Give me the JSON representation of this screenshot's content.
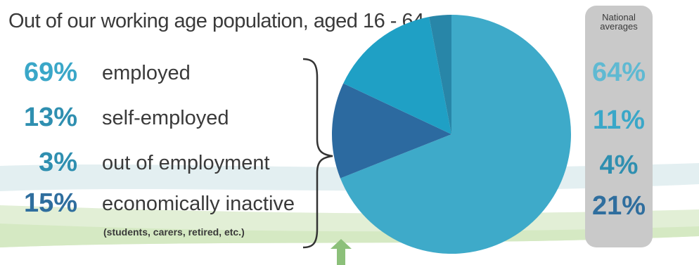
{
  "title": "Out of our working age population, aged 16 - 64",
  "colors": {
    "employed": "#3eaac9",
    "self_employed": "#2c6aa0",
    "out_of_employment": "#2886a8",
    "economically_inactive": "#1fa0c5",
    "pct_employed_text": "#3aa7c8",
    "pct_self_text": "#2f8fb0",
    "pct_out_text": "#2f8fb0",
    "pct_inactive_text": "#2f6e9e",
    "panel": "#c9c9c9",
    "bracket": "#333333",
    "arrow": "#8cc07a"
  },
  "rows": [
    {
      "pct": "69%",
      "label": "employed"
    },
    {
      "pct": "13%",
      "label": "self-employed"
    },
    {
      "pct": "3%",
      "label": "out of employment"
    },
    {
      "pct": "15%",
      "label": "economically inactive"
    }
  ],
  "inactive_note": "(students, carers, retired, etc.)",
  "national": {
    "heading_line1": "National",
    "heading_line2": "averages",
    "values": [
      "64%",
      "11%",
      "4%",
      "21%"
    ]
  },
  "chart_data": {
    "type": "pie",
    "title": "Out of our working age population, aged 16 - 64",
    "categories": [
      "employed",
      "self-employed",
      "out of employment",
      "economically inactive"
    ],
    "values": [
      69,
      13,
      3,
      15
    ],
    "national_averages": [
      64,
      11,
      4,
      21
    ]
  }
}
